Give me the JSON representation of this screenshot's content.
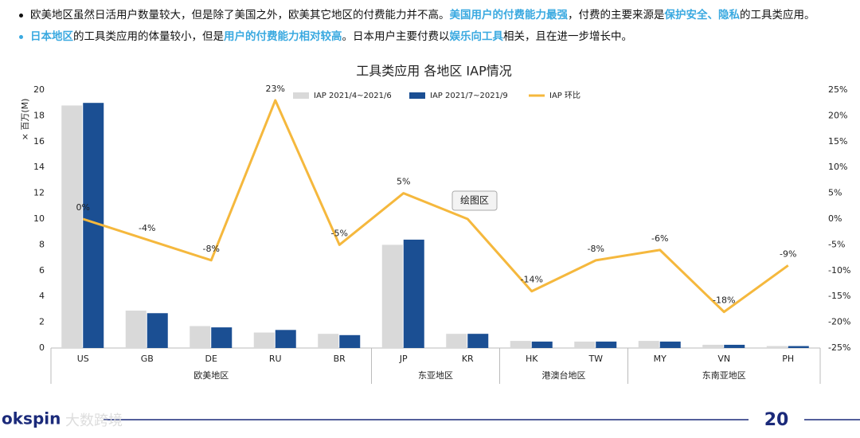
{
  "bullets": [
    [
      {
        "text": "欧美地区虽然日活用户数量较大，但是除了美国之外，欧美其它地区的付费能力并不高。",
        "color": "#111111"
      },
      {
        "text": "美国用户的付费能力最强",
        "color": "#3aa9e0"
      },
      {
        "text": "，付费的主要来源是",
        "color": "#111111"
      },
      {
        "text": "保护安全、隐私",
        "color": "#3aa9e0"
      },
      {
        "text": "的工具类应用。",
        "color": "#111111"
      }
    ],
    [
      {
        "text": "日本地区",
        "color": "#3aa9e0"
      },
      {
        "text": "的工具类应用的体量较小，但是",
        "color": "#111111"
      },
      {
        "text": "用户的付费能力相对较高",
        "color": "#3aa9e0"
      },
      {
        "text": "。日本用户主要付费以",
        "color": "#111111"
      },
      {
        "text": "娱乐向工具",
        "color": "#3aa9e0"
      },
      {
        "text": "相关，且在进一步增长中。",
        "color": "#111111"
      }
    ]
  ],
  "tooltip": "绘图区",
  "footer": {
    "logo": "okspin",
    "watermark": "大数跨境",
    "page": "20"
  },
  "chart_data": {
    "type": "bar-line",
    "title": "工具类应用 各地区 IAP情况",
    "y_label": "× 百万(M)",
    "category_groups": [
      {
        "name": "欧美地区",
        "categories": [
          "US",
          "GB",
          "DE",
          "RU",
          "BR"
        ]
      },
      {
        "name": "东亚地区",
        "categories": [
          "JP",
          "KR"
        ]
      },
      {
        "name": "港澳台地区",
        "categories": [
          "HK",
          "TW"
        ]
      },
      {
        "name": "东南亚地区",
        "categories": [
          "MY",
          "VN",
          "PH"
        ]
      }
    ],
    "series": [
      {
        "name": "IAP 2021/4~2021/6",
        "type": "bar",
        "color": "#d9d9d9",
        "values": [
          18.8,
          2.9,
          1.7,
          1.2,
          1.1,
          8.0,
          1.1,
          0.55,
          0.5,
          0.55,
          0.25,
          0.15
        ]
      },
      {
        "name": "IAP 2021/7~2021/9",
        "type": "bar",
        "color": "#1b4f93",
        "values": [
          19.0,
          2.7,
          1.6,
          1.4,
          1.0,
          8.4,
          1.1,
          0.5,
          0.5,
          0.5,
          0.25,
          0.15
        ]
      },
      {
        "name": "IAP 环比",
        "type": "line",
        "axis": "y2",
        "color": "#f5b83d",
        "values": [
          0,
          -4,
          -8,
          23,
          -5,
          5,
          0,
          -14,
          -8,
          -6,
          -18,
          -9
        ],
        "value_labels": [
          "0%",
          "-4%",
          "-8%",
          "23%",
          "-5%",
          "5%",
          null,
          "-14%",
          "-8%",
          "-6%",
          "-18%",
          "-9%"
        ]
      }
    ],
    "ylim": [
      0,
      20
    ],
    "yticks": [
      0,
      2,
      4,
      6,
      8,
      10,
      12,
      14,
      16,
      18,
      20
    ],
    "y2lim": [
      -25,
      25
    ],
    "y2ticks": [
      {
        "value": -25,
        "label": "-25%"
      },
      {
        "value": -20,
        "label": "-20%"
      },
      {
        "value": -15,
        "label": "-15%"
      },
      {
        "value": -10,
        "label": "-10%"
      },
      {
        "value": -5,
        "label": "-5%"
      },
      {
        "value": 0,
        "label": "0%"
      },
      {
        "value": 5,
        "label": "5%"
      },
      {
        "value": 10,
        "label": "10%"
      },
      {
        "value": 15,
        "label": "15%"
      },
      {
        "value": 20,
        "label": "20%"
      },
      {
        "value": 25,
        "label": "25%"
      }
    ],
    "grid": false
  }
}
